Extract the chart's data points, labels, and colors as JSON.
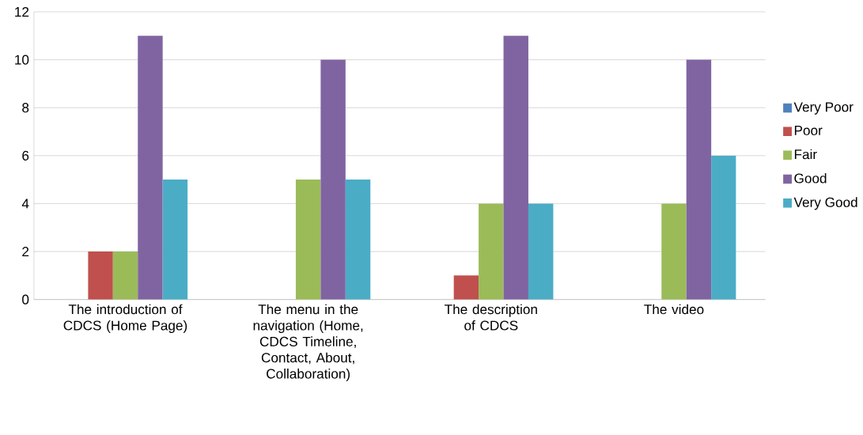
{
  "chart_data": {
    "type": "bar",
    "categories": [
      "The introduction of CDCS (Home Page)",
      "The menu in the navigation (Home, CDCS Timeline, Contact, About, Collaboration)",
      "The description of CDCS",
      "The video"
    ],
    "series": [
      {
        "name": "Very Poor",
        "color": "#4f81bd",
        "values": [
          0,
          0,
          0,
          0
        ]
      },
      {
        "name": "Poor",
        "color": "#c0504d",
        "values": [
          2,
          0,
          1,
          0
        ]
      },
      {
        "name": "Fair",
        "color": "#9bbb59",
        "values": [
          2,
          5,
          4,
          4
        ]
      },
      {
        "name": "Good",
        "color": "#8064a2",
        "values": [
          11,
          10,
          11,
          10
        ]
      },
      {
        "name": "Very Good",
        "color": "#4bacc6",
        "values": [
          5,
          5,
          4,
          6
        ]
      }
    ],
    "ylim": [
      0,
      12
    ],
    "yticks": [
      0,
      2,
      4,
      6,
      8,
      10,
      12
    ],
    "grid": "y",
    "legend": "right"
  }
}
